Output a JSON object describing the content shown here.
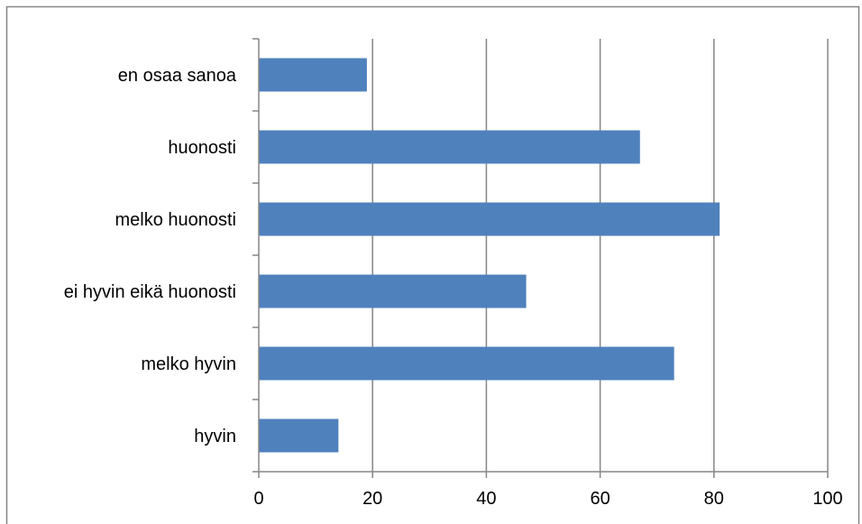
{
  "chart_data": {
    "type": "bar",
    "orientation": "horizontal",
    "title": "",
    "xlabel": "",
    "ylabel": "",
    "categories": [
      "en osaa sanoa",
      "huonosti",
      "melko huonosti",
      "ei hyvin eikä huonosti",
      "melko hyvin",
      "hyvin"
    ],
    "values": [
      19,
      67,
      81,
      47,
      73,
      14
    ],
    "xlim": [
      0,
      100
    ],
    "ticks": [
      "0",
      "20",
      "40",
      "60",
      "80",
      "100"
    ],
    "tick_values": [
      0,
      20,
      40,
      60,
      80,
      100
    ],
    "grid": true,
    "legend": "none",
    "colors": {
      "bar": "#4f81bd",
      "grid": "#868686",
      "axis": "#868686",
      "frame": "#868686"
    }
  }
}
